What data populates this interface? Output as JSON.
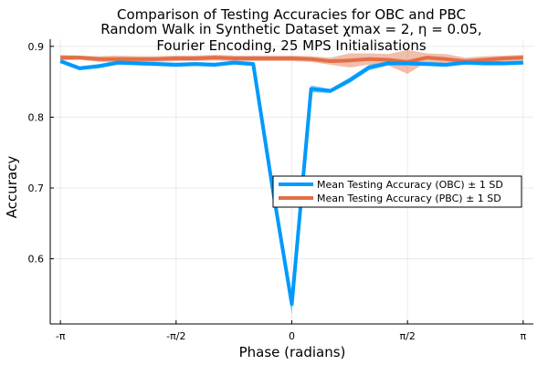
{
  "chart_data": {
    "type": "line",
    "title_lines": [
      "Comparison of Testing Accuracies for OBC and PBC",
      "Random Walk in Synthetic  Dataset χmax = 2, η = 0.05,",
      "Fourier Encoding, 25 MPS Initialisations"
    ],
    "xlabel": "Phase (radians)",
    "ylabel": "Accuracy",
    "xlim": [
      -3.28,
      3.28
    ],
    "ylim": [
      0.508,
      0.91
    ],
    "x_ticks": [
      {
        "value": -3.14159,
        "label": "-π"
      },
      {
        "value": -1.5708,
        "label": "-π/2"
      },
      {
        "value": 0,
        "label": "0"
      },
      {
        "value": 1.5708,
        "label": "π/2"
      },
      {
        "value": 3.14159,
        "label": "π"
      }
    ],
    "y_ticks": [
      {
        "value": 0.6,
        "label": "0.6"
      },
      {
        "value": 0.7,
        "label": "0.7"
      },
      {
        "value": 0.8,
        "label": "0.8"
      },
      {
        "value": 0.9,
        "label": "0.9"
      }
    ],
    "grid": true,
    "legend_position": "right",
    "x": [
      -3.14159,
      -2.87979,
      -2.61799,
      -2.35619,
      -2.0944,
      -1.8326,
      -1.5708,
      -1.309,
      -1.0472,
      -0.7854,
      -0.5236,
      -0.2618,
      0.0,
      0.2618,
      0.5236,
      0.7854,
      1.0472,
      1.309,
      1.5708,
      1.8326,
      2.0944,
      2.35619,
      2.61799,
      2.87979,
      3.14159
    ],
    "series": [
      {
        "name": "Mean Testing Accuracy (OBC) ± 1 SD",
        "color": "#009AFA",
        "values": [
          0.879,
          0.869,
          0.872,
          0.877,
          0.876,
          0.875,
          0.874,
          0.875,
          0.874,
          0.877,
          0.875,
          0.7,
          0.536,
          0.84,
          0.837,
          0.852,
          0.87,
          0.876,
          0.876,
          0.875,
          0.874,
          0.877,
          0.876,
          0.876,
          0.877
        ],
        "sd": [
          0.003,
          0.003,
          0.003,
          0.003,
          0.003,
          0.003,
          0.003,
          0.003,
          0.003,
          0.003,
          0.003,
          0.012,
          0.015,
          0.005,
          0.003,
          0.004,
          0.004,
          0.003,
          0.003,
          0.003,
          0.003,
          0.003,
          0.003,
          0.003,
          0.003
        ]
      },
      {
        "name": "Mean Testing Accuracy (PBC) ± 1 SD",
        "color": "#E26F46",
        "values": [
          0.884,
          0.884,
          0.882,
          0.882,
          0.882,
          0.882,
          0.883,
          0.883,
          0.884,
          0.883,
          0.883,
          0.883,
          0.883,
          0.882,
          0.879,
          0.88,
          0.882,
          0.881,
          0.878,
          0.884,
          0.882,
          0.879,
          0.881,
          0.883,
          0.884
        ],
        "sd": [
          0.004,
          0.003,
          0.004,
          0.005,
          0.004,
          0.004,
          0.004,
          0.004,
          0.004,
          0.004,
          0.004,
          0.004,
          0.004,
          0.004,
          0.005,
          0.01,
          0.008,
          0.008,
          0.017,
          0.006,
          0.007,
          0.005,
          0.005,
          0.004,
          0.004
        ]
      }
    ]
  }
}
